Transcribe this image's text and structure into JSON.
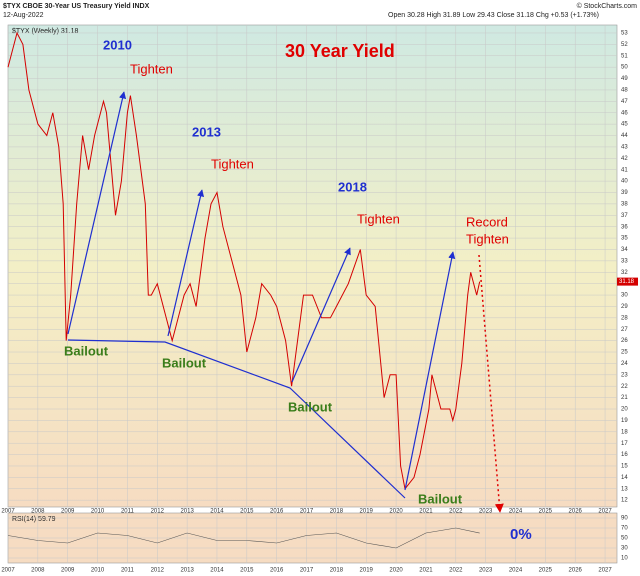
{
  "chart_data": {
    "type": "line",
    "title": "$TYX CBOE 30-Year US Treasury Yield INDX",
    "date": "12-Aug-2022",
    "quote": "Open 30.28 High 31.89 Low 29.43 Close 31.18 Chg +0.53 (+1.73%)",
    "source": "© StockCharts.com",
    "annotations": [
      "2010",
      "Tighten",
      "30 Year Yield",
      "2013",
      "Tighten",
      "2018",
      "Tighten",
      "Record",
      "Tighten",
      "Bailout",
      "Bailout",
      "Bailout",
      "Bailout",
      "0%"
    ],
    "x": [
      2007.0,
      2007.3,
      2007.5,
      2007.7,
      2008.0,
      2008.3,
      2008.5,
      2008.7,
      2008.85,
      2008.95,
      2009.1,
      2009.3,
      2009.5,
      2009.7,
      2009.9,
      2010.2,
      2010.3,
      2010.6,
      2010.8,
      2011.0,
      2011.1,
      2011.3,
      2011.6,
      2011.7,
      2011.8,
      2012.0,
      2012.3,
      2012.5,
      2012.6,
      2012.9,
      2013.1,
      2013.3,
      2013.6,
      2013.8,
      2014.0,
      2014.2,
      2014.5,
      2014.8,
      2015.0,
      2015.3,
      2015.5,
      2015.8,
      2016.0,
      2016.3,
      2016.5,
      2016.9,
      2017.2,
      2017.5,
      2017.8,
      2018.0,
      2018.4,
      2018.8,
      2019.0,
      2019.3,
      2019.6,
      2019.8,
      2020.0,
      2020.15,
      2020.3,
      2020.6,
      2020.8,
      2021.1,
      2021.2,
      2021.5,
      2021.8,
      2021.9,
      2022.0,
      2022.2,
      2022.4,
      2022.5,
      2022.6,
      2022.7,
      2022.8
    ],
    "series": [
      {
        "name": "$TYX (Weekly) 31.18",
        "color": "#d40000",
        "values": [
          50,
          53,
          52,
          48,
          45,
          44,
          46,
          43,
          38,
          26,
          30,
          38,
          44,
          41,
          44,
          47,
          46,
          37,
          40,
          46,
          47.5,
          44,
          38,
          30,
          30,
          31,
          28,
          26,
          27,
          30,
          31,
          29,
          35,
          38,
          39,
          36,
          33,
          30,
          25,
          28,
          31,
          30,
          29,
          26,
          22,
          30,
          30,
          28,
          28,
          29,
          31,
          34,
          30,
          29,
          21,
          23,
          23,
          15,
          13,
          14,
          16,
          20,
          23,
          20,
          20,
          19,
          20,
          24,
          30,
          32,
          31,
          30,
          31.18
        ]
      }
    ],
    "last_value": 31.18,
    "xlim": [
      2007,
      2027.4
    ],
    "xticks": [
      2007,
      2008,
      2009,
      2010,
      2011,
      2012,
      2013,
      2014,
      2015,
      2016,
      2017,
      2018,
      2019,
      2020,
      2021,
      2022,
      2023,
      2024,
      2025,
      2026,
      2027
    ],
    "ylim": [
      11.4,
      53.7
    ],
    "yticks": [
      12,
      13,
      14,
      15,
      16,
      17,
      18,
      19,
      20,
      21,
      22,
      23,
      24,
      25,
      26,
      27,
      28,
      29,
      30,
      31,
      32,
      33,
      34,
      35,
      36,
      37,
      38,
      39,
      40,
      41,
      42,
      43,
      44,
      45,
      46,
      47,
      48,
      49,
      50,
      51,
      52,
      53
    ],
    "grid": true,
    "rsi": {
      "name": "RSI(14) 59.79",
      "color": "#555555",
      "x": [
        2007.0,
        2008.0,
        2009.0,
        2010.0,
        2011.0,
        2012.0,
        2013.0,
        2014.0,
        2015.0,
        2016.0,
        2017.0,
        2018.0,
        2019.0,
        2020.0,
        2021.0,
        2022.0,
        2022.8
      ],
      "values": [
        55,
        45,
        40,
        60,
        55,
        40,
        60,
        45,
        45,
        40,
        55,
        60,
        40,
        30,
        60,
        70,
        59.79
      ],
      "ylim": [
        0,
        100
      ],
      "yticks": [
        10,
        30,
        50,
        70,
        90
      ]
    }
  }
}
